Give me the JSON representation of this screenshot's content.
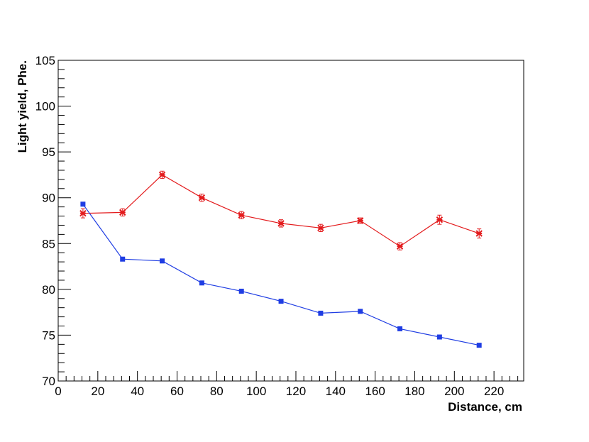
{
  "chart_data": {
    "type": "line",
    "title": "",
    "xlabel": "Distance, cm",
    "ylabel": "Light yield, Phe.",
    "xlim": [
      0,
      235
    ],
    "ylim": [
      70,
      105
    ],
    "x_ticks": [
      0,
      20,
      40,
      60,
      80,
      100,
      120,
      140,
      160,
      180,
      200,
      220
    ],
    "y_ticks": [
      70,
      75,
      80,
      85,
      90,
      95,
      100,
      105
    ],
    "grid": false,
    "legend": "none",
    "x": [
      12.5,
      32.5,
      52.5,
      72.5,
      92.5,
      112.5,
      132.5,
      152.5,
      172.5,
      192.5,
      212.5
    ],
    "series": [
      {
        "color": "#e31a1c",
        "marker": "star",
        "values": [
          88.3,
          88.4,
          92.5,
          90.0,
          88.1,
          87.2,
          86.7,
          87.5,
          84.7,
          87.6,
          86.1
        ],
        "errors": [
          0.5,
          0.4,
          0.4,
          0.4,
          0.4,
          0.4,
          0.4,
          0.3,
          0.4,
          0.5,
          0.5
        ]
      },
      {
        "color": "#1f3de3",
        "marker": "square",
        "values": [
          89.3,
          83.3,
          83.1,
          80.7,
          79.8,
          78.7,
          77.4,
          77.6,
          75.7,
          74.8,
          73.9
        ],
        "errors": [
          0.2,
          0.2,
          0.2,
          0.2,
          0.2,
          0.2,
          0.2,
          0.2,
          0.2,
          0.2,
          0.2
        ]
      }
    ]
  }
}
